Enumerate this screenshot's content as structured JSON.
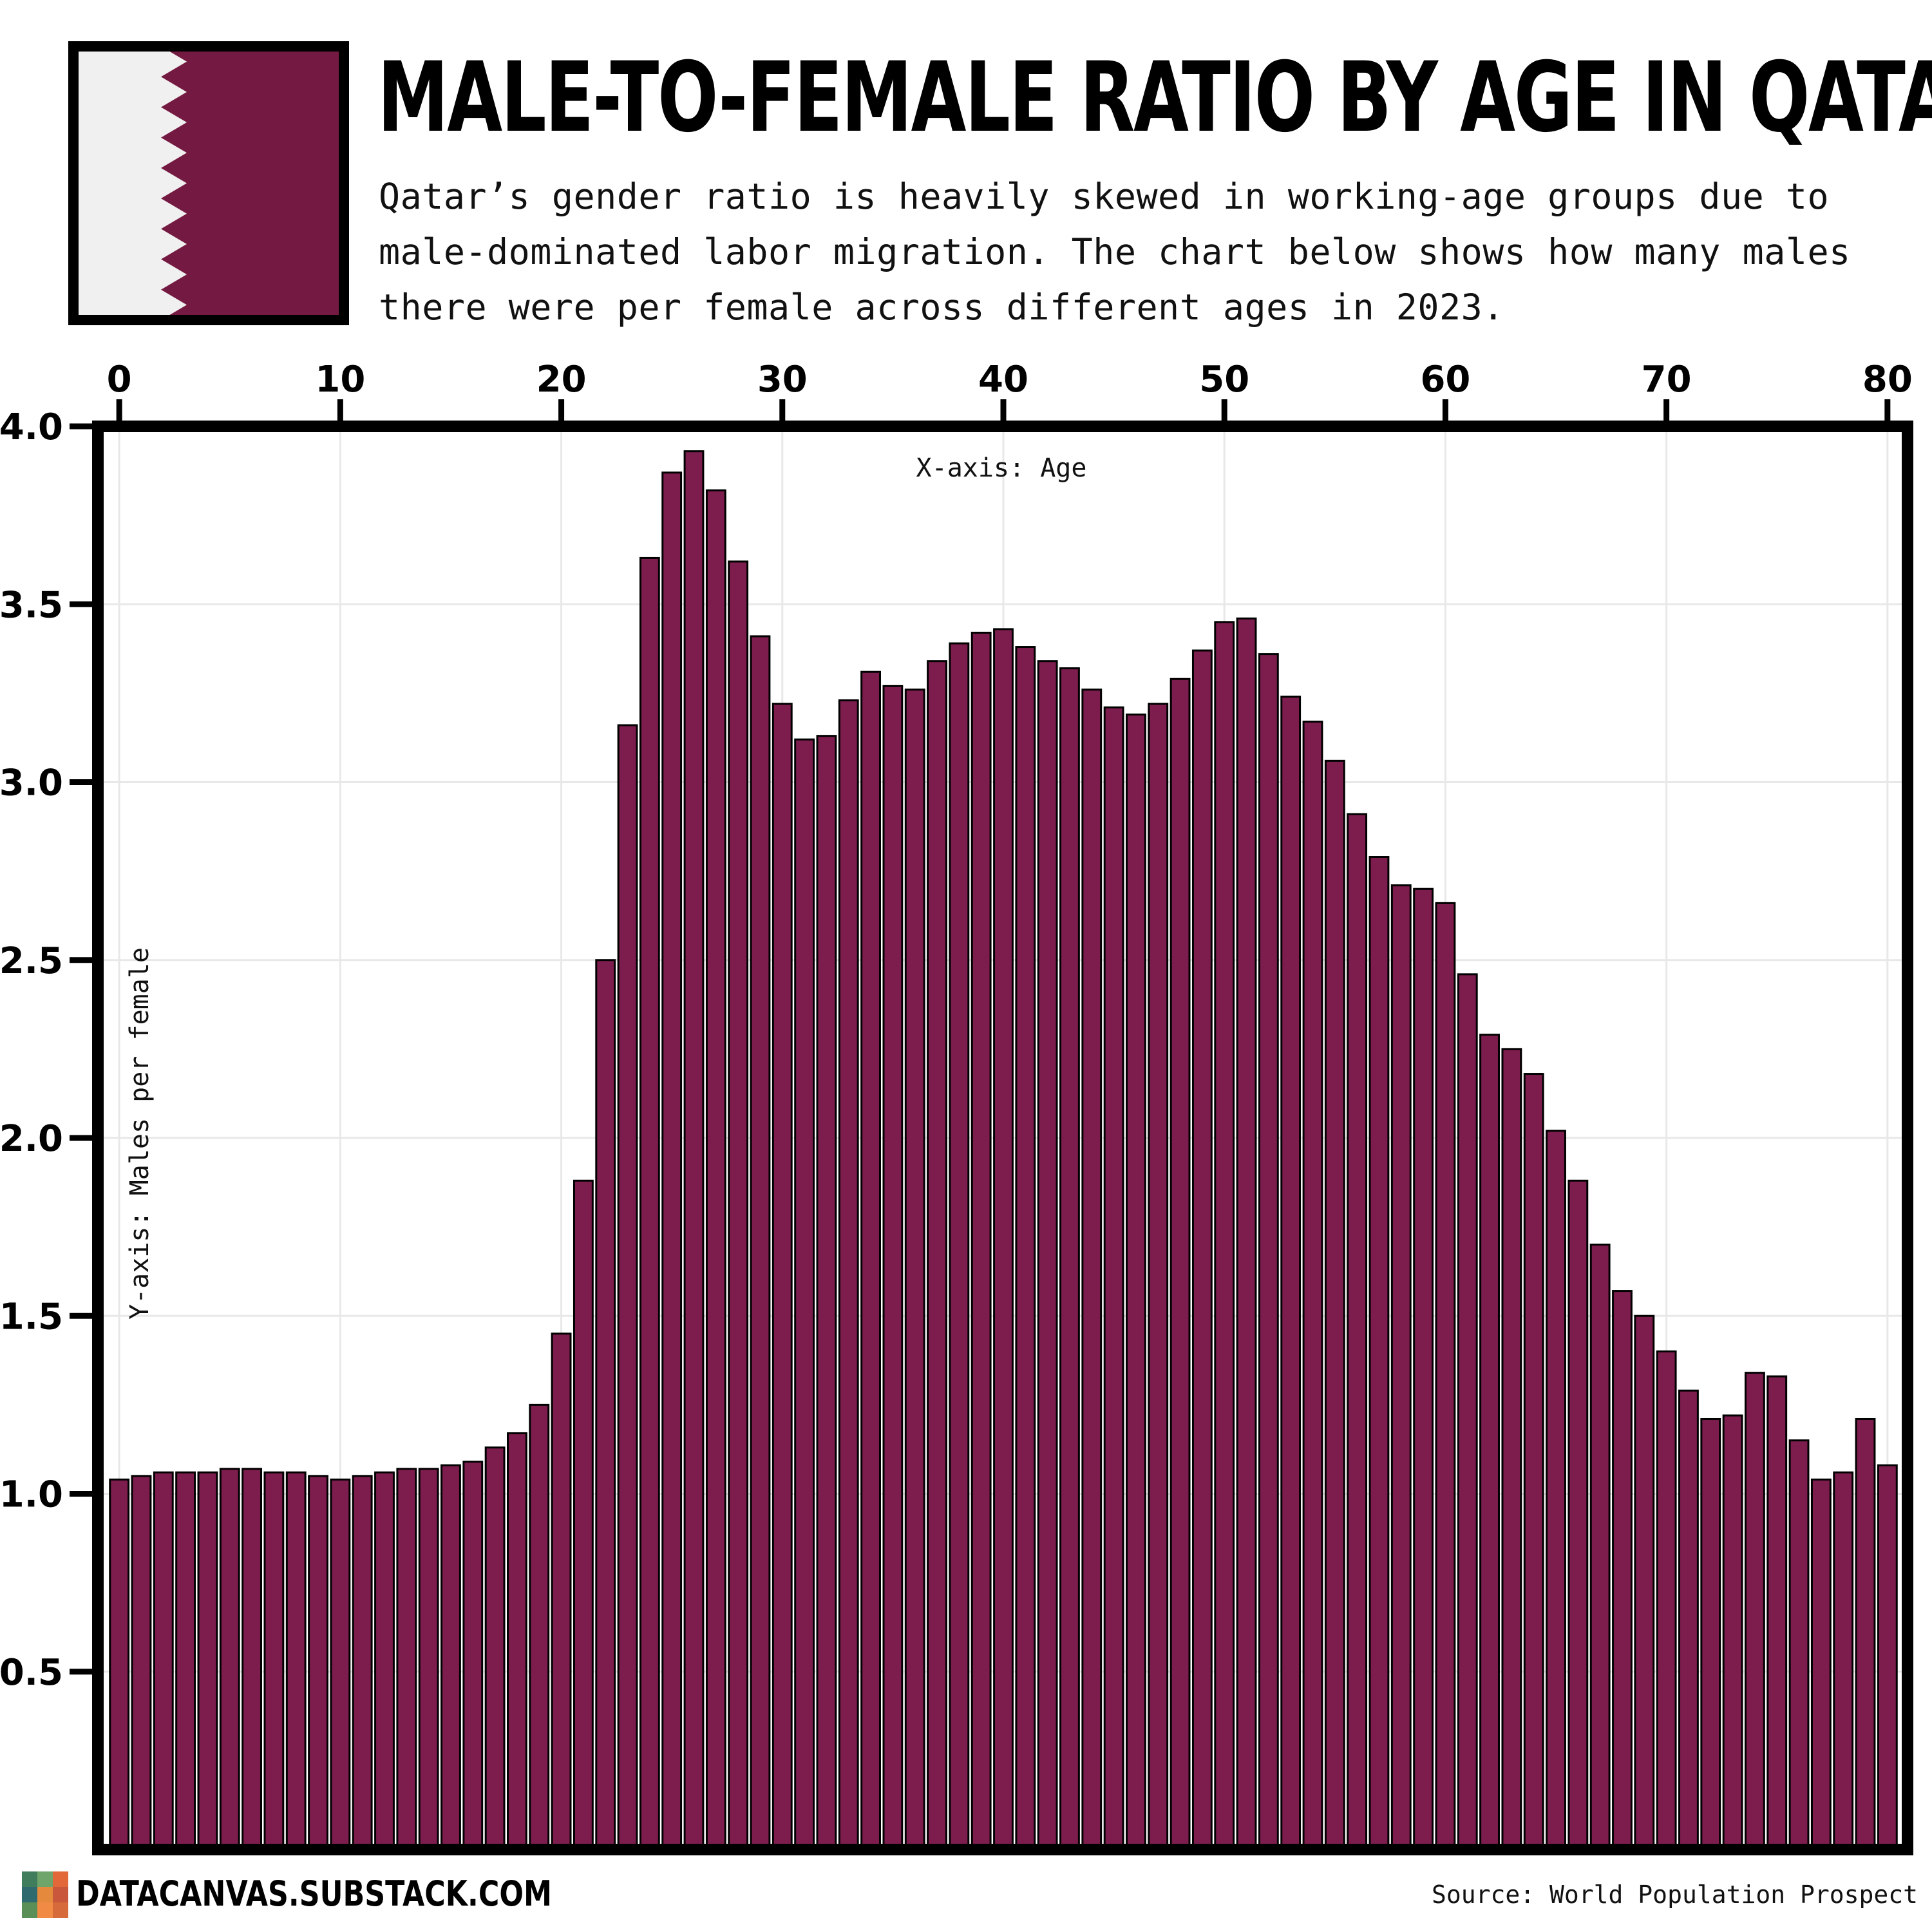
{
  "header": {
    "title": "MALE-TO-FEMALE RATIO BY AGE IN QATAR",
    "subtitle": "Qatar’s gender ratio is heavily skewed in working-age groups due to male-dominated labor migration. The chart below shows how many males there were per female across different ages in 2023."
  },
  "footer": {
    "brand": "DATACANVAS.SUBSTACK.COM",
    "source": "Source: World Population Prospect"
  },
  "colors": {
    "bar": "#7d1d4d",
    "flag_maroon": "#741a42",
    "flag_white": "#f0f0f0",
    "frame": "#000000",
    "grid": "#e8e8e8"
  },
  "icons": [
    "qatar-flag-icon",
    "datacanvas-logo-icon"
  ],
  "chart_data": {
    "type": "bar",
    "title": "MALE-TO-FEMALE RATIO BY AGE IN QATAR",
    "xlabel": "X-axis: Age",
    "ylabel": "Y-axis: Males per female",
    "x_axis_position": "top",
    "xlim": [
      0,
      80
    ],
    "ylim": [
      0,
      4.0
    ],
    "xticks": [
      0,
      10,
      20,
      30,
      40,
      50,
      60,
      70,
      80
    ],
    "yticks": [
      0.5,
      1.0,
      1.5,
      2.0,
      2.5,
      3.0,
      3.5,
      4.0
    ],
    "ytick_labels": [
      "0.5",
      "1.0",
      "1.5",
      "2.0",
      "2.5",
      "3.0",
      "3.5",
      "4.0"
    ],
    "grid": true,
    "x": [
      0,
      1,
      2,
      3,
      4,
      5,
      6,
      7,
      8,
      9,
      10,
      11,
      12,
      13,
      14,
      15,
      16,
      17,
      18,
      19,
      20,
      21,
      22,
      23,
      24,
      25,
      26,
      27,
      28,
      29,
      30,
      31,
      32,
      33,
      34,
      35,
      36,
      37,
      38,
      39,
      40,
      41,
      42,
      43,
      44,
      45,
      46,
      47,
      48,
      49,
      50,
      51,
      52,
      53,
      54,
      55,
      56,
      57,
      58,
      59,
      60,
      61,
      62,
      63,
      64,
      65,
      66,
      67,
      68,
      69,
      70,
      71,
      72,
      73,
      74,
      75,
      76,
      77,
      78,
      79,
      80
    ],
    "values": [
      1.04,
      1.05,
      1.06,
      1.06,
      1.06,
      1.07,
      1.07,
      1.06,
      1.06,
      1.05,
      1.04,
      1.05,
      1.06,
      1.07,
      1.07,
      1.08,
      1.09,
      1.13,
      1.17,
      1.25,
      1.45,
      1.88,
      2.5,
      3.16,
      3.63,
      3.87,
      3.93,
      3.82,
      3.62,
      3.41,
      3.22,
      3.12,
      3.13,
      3.23,
      3.31,
      3.27,
      3.26,
      3.34,
      3.39,
      3.42,
      3.43,
      3.38,
      3.34,
      3.32,
      3.26,
      3.21,
      3.19,
      3.22,
      3.29,
      3.37,
      3.45,
      3.46,
      3.36,
      3.24,
      3.17,
      3.06,
      2.91,
      2.79,
      2.71,
      2.7,
      2.66,
      2.46,
      2.29,
      2.25,
      2.18,
      2.02,
      1.88,
      1.7,
      1.57,
      1.5,
      1.4,
      1.29,
      1.21,
      1.22,
      1.34,
      1.33,
      1.15,
      1.04,
      1.06,
      1.21,
      1.08
    ]
  }
}
